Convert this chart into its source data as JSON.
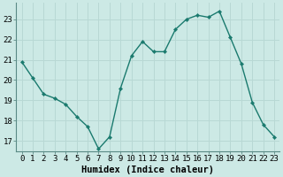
{
  "x": [
    0,
    1,
    2,
    3,
    4,
    5,
    6,
    7,
    8,
    9,
    10,
    11,
    12,
    13,
    14,
    15,
    16,
    17,
    18,
    19,
    20,
    21,
    22,
    23
  ],
  "y": [
    20.9,
    20.1,
    19.3,
    19.1,
    18.8,
    18.2,
    17.7,
    16.6,
    17.2,
    19.6,
    21.2,
    21.9,
    21.4,
    21.4,
    22.5,
    23.0,
    23.2,
    23.1,
    23.4,
    22.1,
    20.8,
    18.9,
    17.8,
    17.2
  ],
  "line_color": "#1a7a6e",
  "marker": "D",
  "marker_size": 2.2,
  "bg_color": "#cce9e5",
  "grid_color": "#b8d8d4",
  "xlabel": "Humidex (Indice chaleur)",
  "xlim": [
    -0.5,
    23.5
  ],
  "ylim": [
    16.5,
    23.8
  ],
  "yticks": [
    17,
    18,
    19,
    20,
    21,
    22,
    23
  ],
  "xticks": [
    0,
    1,
    2,
    3,
    4,
    5,
    6,
    7,
    8,
    9,
    10,
    11,
    12,
    13,
    14,
    15,
    16,
    17,
    18,
    19,
    20,
    21,
    22,
    23
  ],
  "xlabel_fontsize": 7.5,
  "tick_fontsize": 6.5,
  "spine_color": "#5a8a85",
  "linewidth": 1.0
}
